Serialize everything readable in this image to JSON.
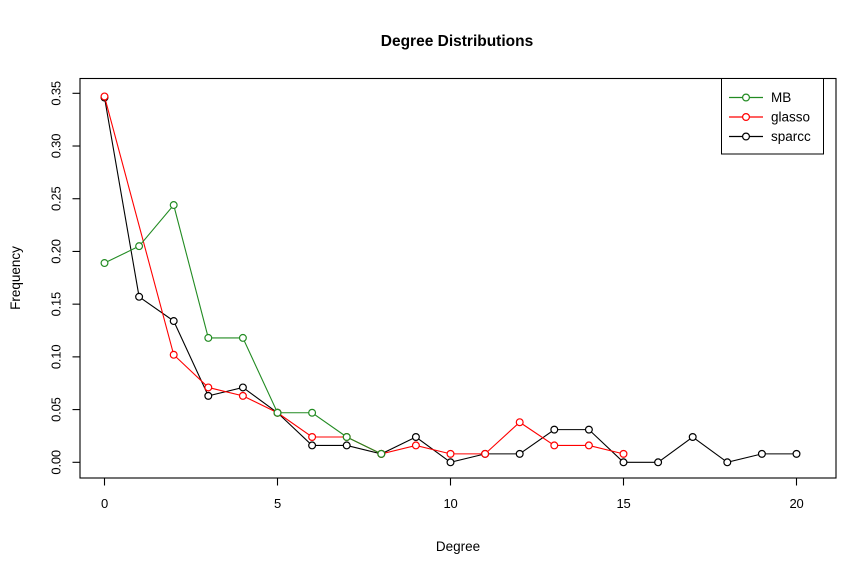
{
  "chart_data": {
    "type": "line",
    "title": "Degree Distributions",
    "xlabel": "Degree",
    "ylabel": "Frequency",
    "xlim": [
      0,
      20
    ],
    "ylim": [
      0.0,
      0.35
    ],
    "x_ticks": [
      "0",
      "5",
      "10",
      "15",
      "20"
    ],
    "y_ticks": [
      "0.00",
      "0.05",
      "0.10",
      "0.15",
      "0.20",
      "0.25",
      "0.30",
      "0.35"
    ],
    "grid": "off",
    "legend_position": "top-right",
    "marker": "open-circle",
    "series": [
      {
        "name": "MB",
        "color": "#228B22",
        "x": [
          0,
          1,
          2,
          3,
          4,
          5,
          6,
          7,
          8
        ],
        "y": [
          0.189,
          0.205,
          0.244,
          0.118,
          0.118,
          0.047,
          0.047,
          0.024,
          0.008
        ]
      },
      {
        "name": "glasso",
        "color": "#FF0000",
        "x": [
          0,
          2,
          3,
          4,
          5,
          6,
          7,
          8,
          9,
          10,
          11,
          12,
          13,
          14,
          15
        ],
        "y": [
          0.347,
          0.102,
          0.071,
          0.063,
          0.047,
          0.024,
          0.024,
          0.008,
          0.016,
          0.008,
          0.008,
          0.038,
          0.016,
          0.016,
          0.008
        ]
      },
      {
        "name": "sparcc",
        "color": "#000000",
        "x": [
          0,
          1,
          2,
          3,
          4,
          5,
          6,
          7,
          8,
          9,
          10,
          11,
          12,
          13,
          14,
          15,
          16,
          17,
          18,
          19,
          20
        ],
        "y": [
          0.346,
          0.157,
          0.134,
          0.063,
          0.071,
          0.047,
          0.016,
          0.016,
          0.008,
          0.024,
          0.0,
          0.008,
          0.008,
          0.031,
          0.031,
          0.0,
          0.0,
          0.024,
          0.0,
          0.008,
          0.008
        ]
      }
    ]
  }
}
